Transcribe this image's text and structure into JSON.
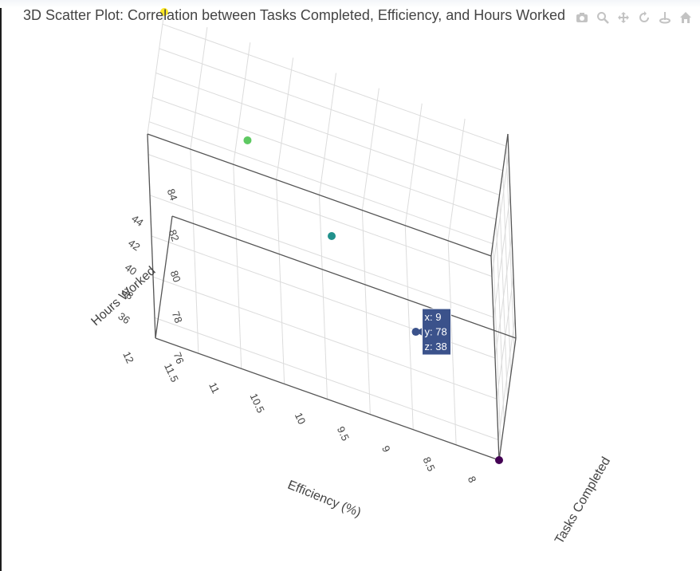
{
  "chart_data": {
    "type": "scatter",
    "subtype": "scatter3d",
    "title": "3D Scatter Plot: Correlation between Tasks Completed, Efficiency, and Hours Worked",
    "x_label": "Tasks Completed",
    "y_label": "Efficiency (%)",
    "z_label": "Hours Worked",
    "x_ticks": [
      "8",
      "8.5",
      "9",
      "9.5",
      "10",
      "10.5",
      "11",
      "11.5",
      "12"
    ],
    "y_ticks": [
      "76",
      "78",
      "80",
      "82",
      "84"
    ],
    "z_ticks": [
      "36",
      "38",
      "40",
      "42",
      "44"
    ],
    "x_range": [
      8,
      12
    ],
    "y_range": [
      75,
      85
    ],
    "z_range": [
      35,
      45
    ],
    "colorscale": "viridis",
    "points": [
      {
        "x": 8,
        "y": 75,
        "z": 35,
        "color": "#440154"
      },
      {
        "x": 9,
        "y": 78,
        "z": 38,
        "color": "#3b528b"
      },
      {
        "x": 10,
        "y": 80,
        "z": 40,
        "color": "#21918c"
      },
      {
        "x": 11,
        "y": 82,
        "z": 42,
        "color": "#5ec962"
      },
      {
        "x": 12,
        "y": 85,
        "z": 45,
        "color": "#fde725"
      }
    ],
    "hover": {
      "point_index": 1,
      "lines": [
        "x: 9",
        "y: 78",
        "z: 38"
      ],
      "bgcolor": "#3b528b"
    },
    "grid": true
  },
  "modebar": [
    "camera-icon",
    "zoom-icon",
    "pan-icon",
    "orbit-icon",
    "turntable-icon",
    "home-icon"
  ]
}
